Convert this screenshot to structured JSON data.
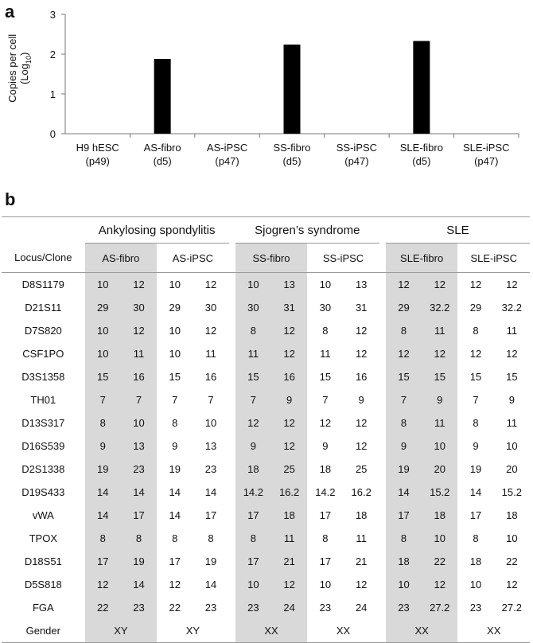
{
  "panel_a_letter": "a",
  "panel_b_letter": "b",
  "chart_data": {
    "type": "bar",
    "categories": [
      [
        "H9 hESC",
        "(p49)"
      ],
      [
        "AS-fibro",
        "(d5)"
      ],
      [
        "AS-iPSC",
        "(p47)"
      ],
      [
        "SS-fibro",
        "(d5)"
      ],
      [
        "SS-iPSC",
        "(p47)"
      ],
      [
        "SLE-fibro",
        "(d5)"
      ],
      [
        "SLE-iPSC",
        "(p47)"
      ]
    ],
    "values": [
      0,
      1.88,
      0,
      2.24,
      0,
      2.33,
      0
    ],
    "ylabel_line1": "Copies per cell",
    "ylabel_line2_prefix": "(Log",
    "ylabel_sub": "10",
    "ylabel_line2_suffix": ")",
    "ylim": [
      0,
      3
    ],
    "yticks": [
      "0",
      "1",
      "2",
      "3"
    ],
    "bar_color": "#000000",
    "grid": false
  },
  "table": {
    "groups": [
      "Ankylosing spondylitis",
      "Sjogren’s syndrome",
      "SLE"
    ],
    "locus_header": "Locus/Clone",
    "clones": [
      "AS-fibro",
      "AS-iPSC",
      "SS-fibro",
      "SS-iPSC",
      "SLE-fibro",
      "SLE-iPSC"
    ],
    "rows": [
      {
        "locus": "D8S1179",
        "v": [
          "10",
          "12",
          "10",
          "12",
          "10",
          "13",
          "10",
          "13",
          "12",
          "12",
          "12",
          "12"
        ]
      },
      {
        "locus": "D21S11",
        "v": [
          "29",
          "30",
          "29",
          "30",
          "30",
          "31",
          "30",
          "31",
          "29",
          "32.2",
          "29",
          "32.2"
        ]
      },
      {
        "locus": "D7S820",
        "v": [
          "10",
          "12",
          "10",
          "12",
          "8",
          "12",
          "8",
          "12",
          "8",
          "11",
          "8",
          "11"
        ]
      },
      {
        "locus": "CSF1PO",
        "v": [
          "10",
          "11",
          "10",
          "11",
          "11",
          "12",
          "11",
          "12",
          "12",
          "12",
          "12",
          "12"
        ]
      },
      {
        "locus": "D3S1358",
        "v": [
          "15",
          "16",
          "15",
          "16",
          "15",
          "16",
          "15",
          "16",
          "15",
          "15",
          "15",
          "15"
        ]
      },
      {
        "locus": "TH01",
        "v": [
          "7",
          "7",
          "7",
          "7",
          "7",
          "9",
          "7",
          "9",
          "7",
          "9",
          "7",
          "9"
        ]
      },
      {
        "locus": "D13S317",
        "v": [
          "8",
          "10",
          "8",
          "10",
          "12",
          "12",
          "12",
          "12",
          "8",
          "11",
          "8",
          "11"
        ]
      },
      {
        "locus": "D16S539",
        "v": [
          "9",
          "13",
          "9",
          "13",
          "9",
          "12",
          "9",
          "12",
          "9",
          "10",
          "9",
          "10"
        ]
      },
      {
        "locus": "D2S1338",
        "v": [
          "19",
          "23",
          "19",
          "23",
          "18",
          "25",
          "18",
          "25",
          "19",
          "20",
          "19",
          "20"
        ]
      },
      {
        "locus": "D19S433",
        "v": [
          "14",
          "14",
          "14",
          "14",
          "14.2",
          "16.2",
          "14.2",
          "16.2",
          "14",
          "15.2",
          "14",
          "15.2"
        ]
      },
      {
        "locus": "vWA",
        "v": [
          "14",
          "17",
          "14",
          "17",
          "17",
          "18",
          "17",
          "18",
          "17",
          "18",
          "17",
          "18"
        ]
      },
      {
        "locus": "TPOX",
        "v": [
          "8",
          "8",
          "8",
          "8",
          "8",
          "11",
          "8",
          "11",
          "8",
          "10",
          "8",
          "10"
        ]
      },
      {
        "locus": "D18S51",
        "v": [
          "17",
          "19",
          "17",
          "19",
          "17",
          "21",
          "17",
          "21",
          "18",
          "22",
          "18",
          "22"
        ]
      },
      {
        "locus": "D5S818",
        "v": [
          "12",
          "14",
          "12",
          "14",
          "10",
          "12",
          "10",
          "12",
          "10",
          "12",
          "10",
          "12"
        ]
      },
      {
        "locus": "FGA",
        "v": [
          "22",
          "23",
          "22",
          "23",
          "23",
          "24",
          "23",
          "24",
          "23",
          "27.2",
          "23",
          "27.2"
        ]
      }
    ],
    "gender_label": "Gender",
    "gender": [
      "XY",
      "XY",
      "XX",
      "XX",
      "XX",
      "XX"
    ],
    "shade_color": "#d9d9d9"
  }
}
